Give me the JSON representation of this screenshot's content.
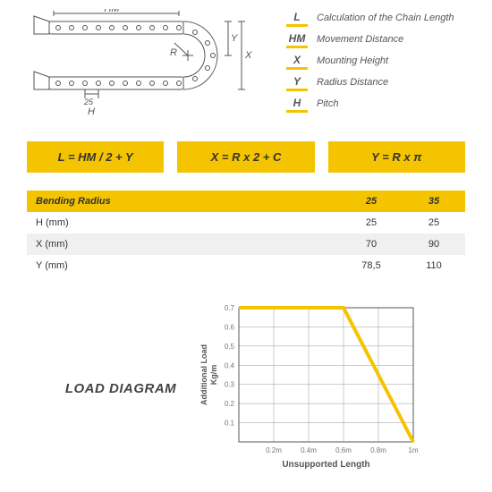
{
  "legend": [
    {
      "sym": "L",
      "txt": "Calculation of the Chain Length"
    },
    {
      "sym": "HM",
      "txt": "Movement Distance"
    },
    {
      "sym": "X",
      "txt": "Mounting Height"
    },
    {
      "sym": "Y",
      "txt": "Radius Distance"
    },
    {
      "sym": "H",
      "txt": "Pitch"
    }
  ],
  "formulas": [
    "L = HM / 2 + Y",
    "X = R x 2 + C",
    "Y = R x π"
  ],
  "table": {
    "header": {
      "label": "Bending Radius",
      "cols": [
        "25",
        "35"
      ]
    },
    "rows": [
      {
        "label": "H (mm)",
        "vals": [
          "25",
          "25"
        ],
        "alt": false
      },
      {
        "label": "X (mm)",
        "vals": [
          "70",
          "90"
        ],
        "alt": true
      },
      {
        "label": "Y (mm)",
        "vals": [
          "78,5",
          "110"
        ],
        "alt": false
      }
    ]
  },
  "chart": {
    "title": "LOAD DIAGRAM",
    "xlabel": "Unsupported Length",
    "ylabel": "Additional Load\nKg/m",
    "xticks": [
      "0.2m",
      "0.4m",
      "0.6m",
      "0.8m",
      "1m"
    ],
    "yticks": [
      "0.7",
      "0.6",
      "0.5",
      "0.4",
      "0.3",
      "0.2",
      "0.1"
    ],
    "line_color": "#f5c400",
    "grid_color": "#999",
    "points": [
      {
        "x": 0.0,
        "y": 0.7
      },
      {
        "x": 0.6,
        "y": 0.7
      },
      {
        "x": 1.0,
        "y": 0.0
      }
    ],
    "xrange": [
      0,
      1.0
    ],
    "yrange": [
      0,
      0.7
    ]
  },
  "diagram": {
    "labels": {
      "HM": "HM",
      "R": "R",
      "Y": "Y",
      "X": "X",
      "H": "H",
      "h25": "25"
    }
  }
}
